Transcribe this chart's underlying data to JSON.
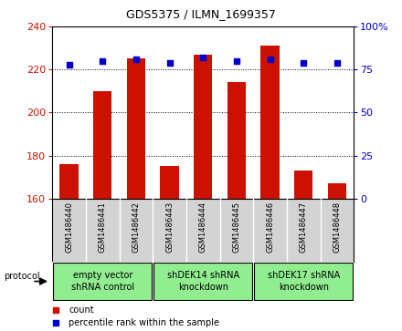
{
  "title": "GDS5375 / ILMN_1699357",
  "samples": [
    "GSM1486440",
    "GSM1486441",
    "GSM1486442",
    "GSM1486443",
    "GSM1486444",
    "GSM1486445",
    "GSM1486446",
    "GSM1486447",
    "GSM1486448"
  ],
  "counts": [
    176,
    210,
    225,
    175,
    227,
    214,
    231,
    173,
    167
  ],
  "percentile_ranks": [
    78,
    80,
    81,
    79,
    82,
    80,
    81,
    79,
    79
  ],
  "ylim_left": [
    160,
    240
  ],
  "ylim_right": [
    0,
    100
  ],
  "yticks_left": [
    160,
    180,
    200,
    220,
    240
  ],
  "yticks_right": [
    0,
    25,
    50,
    75,
    100
  ],
  "bar_color": "#cc1100",
  "dot_color": "#0000cc",
  "groups": [
    {
      "label": "empty vector\nshRNA control",
      "start": 0,
      "end": 3
    },
    {
      "label": "shDEK14 shRNA\nknockdown",
      "start": 3,
      "end": 6
    },
    {
      "label": "shDEK17 shRNA\nknockdown",
      "start": 6,
      "end": 9
    }
  ],
  "group_color": "#90ee90",
  "protocol_label": "protocol",
  "legend_count_label": "count",
  "legend_percentile_label": "percentile rank within the sample",
  "tick_label_color_left": "#cc1100",
  "tick_label_color_right": "#0000cc",
  "sample_box_color": "#d3d3d3",
  "title_fontsize": 9,
  "axis_fontsize": 8,
  "sample_fontsize": 6,
  "group_fontsize": 7,
  "legend_fontsize": 7
}
